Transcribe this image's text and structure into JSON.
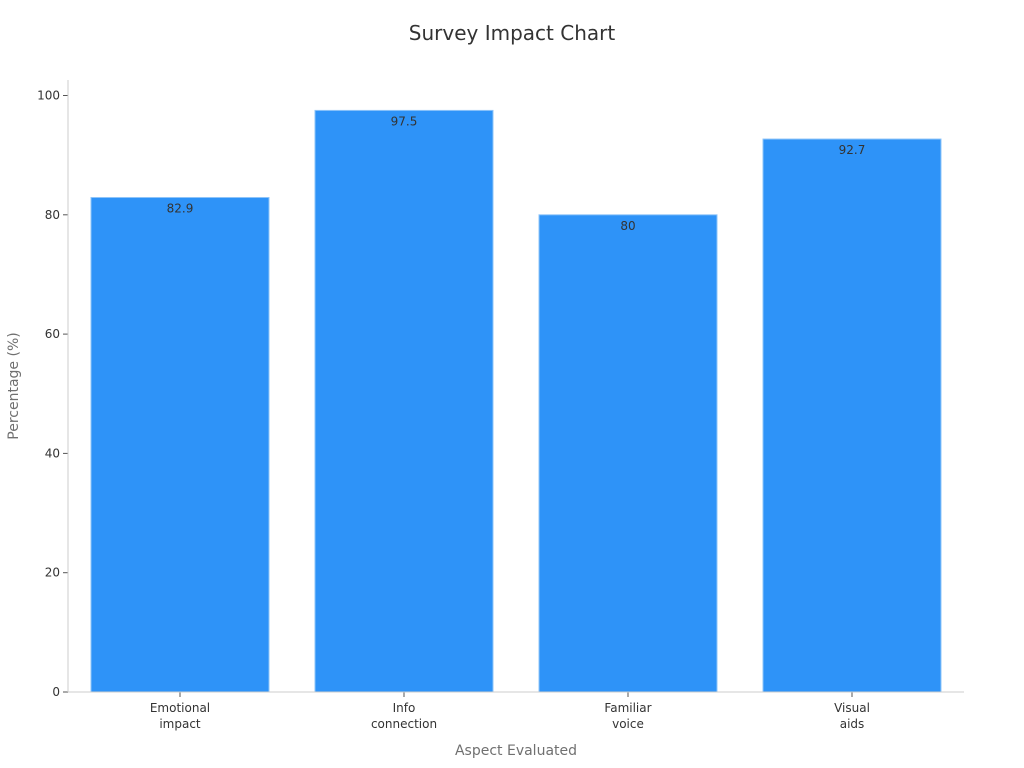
{
  "chart_data": {
    "type": "bar",
    "title": "Survey Impact Chart",
    "xlabel": "Aspect Evaluated",
    "ylabel": "Percentage (%)",
    "categories": [
      [
        "Emotional",
        "impact"
      ],
      [
        "Info",
        "connection"
      ],
      [
        "Familiar",
        "voice"
      ],
      [
        "Visual",
        "aids"
      ]
    ],
    "values": [
      82.9,
      97.5,
      80,
      92.7
    ],
    "data_labels": [
      "82.9",
      "97.5",
      "80",
      "92.7"
    ],
    "ylim": [
      0,
      102.6
    ],
    "yticks": [
      0,
      20,
      40,
      60,
      80,
      100
    ],
    "grid": false,
    "colors": {
      "bar": "#2e93f8",
      "bar_edge": "#8ec4f9"
    }
  }
}
